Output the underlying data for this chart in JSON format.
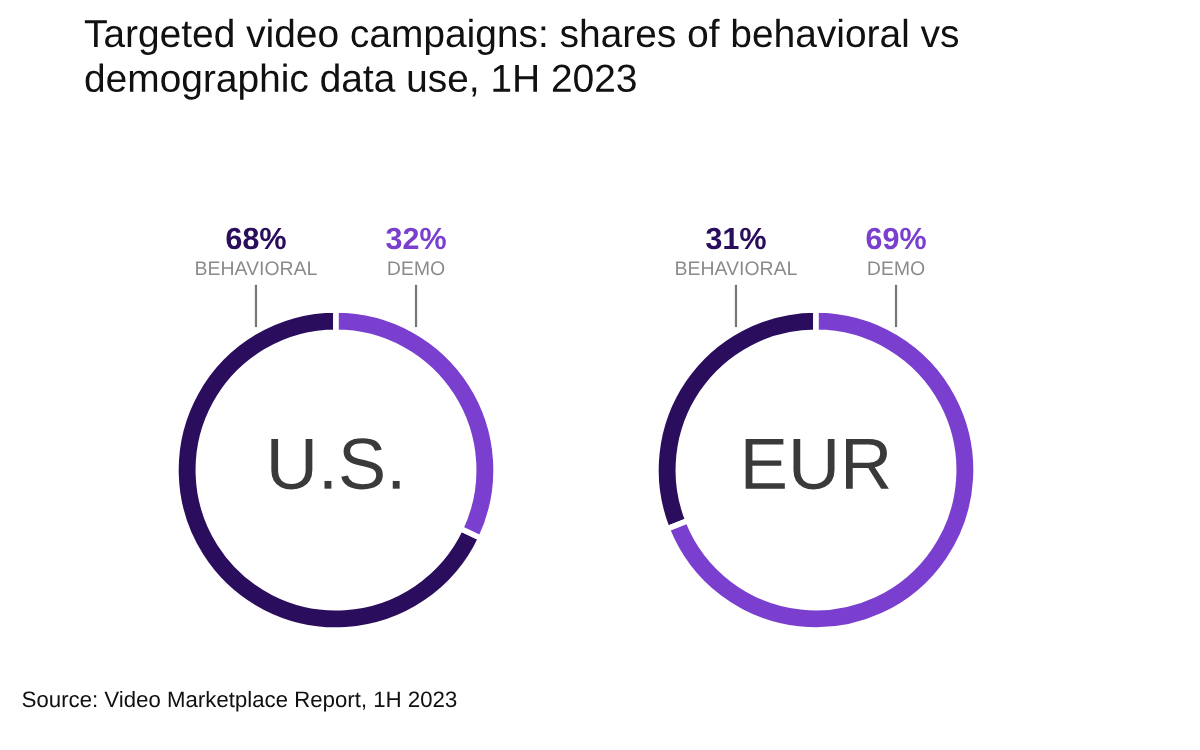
{
  "chart_data": [
    {
      "type": "donut",
      "title": "Targeted video campaigns: shares of behavioral vs\ndemographic data use, 1H 2023",
      "categories": [
        "BEHAVIORAL",
        "DEMO"
      ],
      "values": [
        68,
        32
      ],
      "value_labels": [
        "68%",
        "32%"
      ],
      "colors": [
        "#2b0d5e",
        "#7a3fcf"
      ],
      "annotations": [
        "U.S."
      ]
    },
    {
      "type": "donut",
      "categories": [
        "BEHAVIORAL",
        "DEMO"
      ],
      "values": [
        31,
        69
      ],
      "value_labels": [
        "31%",
        "69%"
      ],
      "colors": [
        "#2b0d5e",
        "#7a3fcf"
      ],
      "annotations": [
        "EUR",
        "Source: Video Marketplace Report, 1H 2023"
      ]
    }
  ]
}
